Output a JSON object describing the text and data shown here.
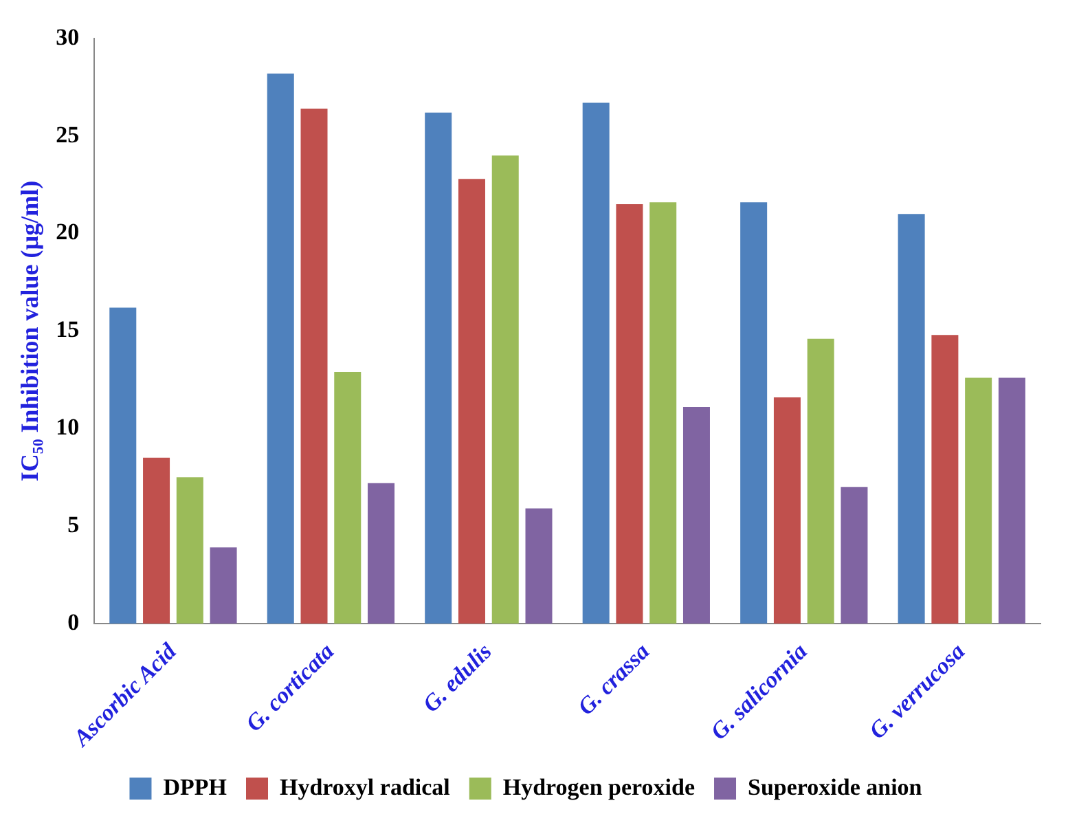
{
  "chart_data": {
    "type": "bar",
    "ylabel": "IC₅₀ Inhibition value (µg/ml)",
    "categories": [
      "Ascorbic Acid",
      "G. corticata",
      "G. edulis",
      "G. crassa",
      "G. salicornia",
      "G. verrucosa"
    ],
    "series": [
      {
        "name": "DPPH",
        "color": "#4f81bd",
        "values": [
          16.2,
          28.2,
          26.2,
          26.7,
          21.6,
          21
        ]
      },
      {
        "name": "Hydroxyl radical",
        "color": "#c0504d",
        "values": [
          8.5,
          26.4,
          22.8,
          21.5,
          11.6,
          14.8
        ]
      },
      {
        "name": "Hydrogen peroxide",
        "color": "#9bbb59",
        "values": [
          7.5,
          12.9,
          24,
          21.6,
          14.6,
          12.6
        ]
      },
      {
        "name": "Superoxide anion",
        "color": "#8064a2",
        "values": [
          3.9,
          7.2,
          5.9,
          11.1,
          7,
          12.6
        ]
      }
    ],
    "ylim": [
      0,
      30
    ],
    "yticks": [
      0,
      5,
      10,
      15,
      20,
      25,
      30
    ],
    "grid": false,
    "legend": "bottom"
  }
}
